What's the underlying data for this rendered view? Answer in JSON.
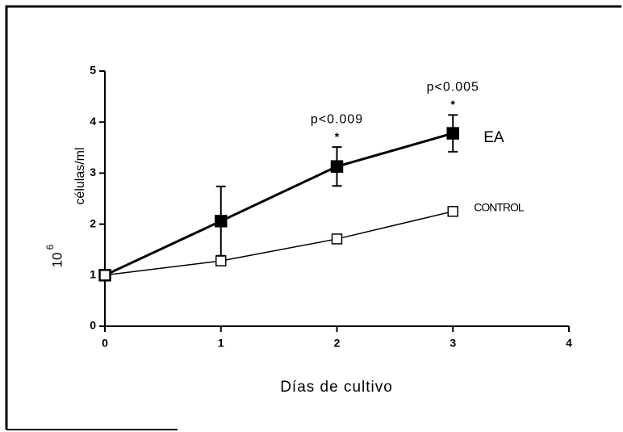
{
  "chart_data": {
    "type": "line",
    "xlabel": "Días de cultivo",
    "ylabel": "células/ml",
    "ylabel_base": "10",
    "ylabel_exponent": "6",
    "x": [
      0,
      1,
      2,
      3
    ],
    "series": [
      {
        "name": "EA",
        "color": "#000000",
        "marker": "filled-square",
        "values": [
          1,
          2.06,
          3.13,
          3.78
        ],
        "errors": [
          0,
          0.68,
          0.38,
          0.36
        ]
      },
      {
        "name": "CONTROL",
        "color": "#000000",
        "marker": "open-square",
        "values": [
          1,
          1.28,
          1.71,
          2.25
        ]
      }
    ],
    "annotations": [
      {
        "text": "p<0.009",
        "x": 2
      },
      {
        "text": "*",
        "x": 2
      },
      {
        "text": "p<0.005",
        "x": 3
      },
      {
        "text": "*",
        "x": 3
      }
    ],
    "xlim": [
      0,
      4
    ],
    "xticks": [
      0,
      1,
      2,
      3,
      4
    ],
    "ylim": [
      0,
      5
    ],
    "yticks": [
      0,
      1,
      2,
      3,
      4,
      5
    ],
    "grid": false
  }
}
